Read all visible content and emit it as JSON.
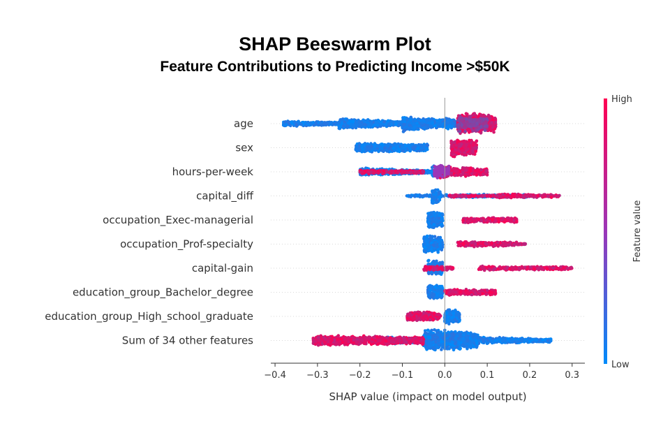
{
  "chart_data": {
    "type": "scatter",
    "subtype": "shap-beeswarm",
    "title": "SHAP Beeswarm Plot",
    "subtitle": "Feature Contributions to Predicting Income >$50K",
    "xlabel": "SHAP value (impact on model output)",
    "xlim": [
      -0.41,
      0.33
    ],
    "xticks": [
      -0.4,
      -0.3,
      -0.2,
      -0.1,
      0.0,
      0.1,
      0.2,
      0.3
    ],
    "xtick_labels": [
      "−0.4",
      "−0.3",
      "−0.2",
      "−0.1",
      "0.0",
      "0.1",
      "0.2",
      "0.3"
    ],
    "colorbar": {
      "label": "Feature value",
      "high": "High",
      "low": "Low",
      "low_color": "#008bfb",
      "high_color": "#ff0052"
    },
    "features": [
      {
        "name": "age",
        "min": -0.38,
        "max": 0.12,
        "low": [
          [
            -0.38,
            -0.25,
            0.8,
            0.3
          ],
          [
            -0.25,
            -0.1,
            1.4,
            0.5
          ],
          [
            -0.1,
            0.0,
            2.0,
            0.9
          ],
          [
            0.0,
            0.03,
            2.0,
            0.6
          ]
        ],
        "high": [
          [
            0.03,
            0.12,
            2.6,
            2.3
          ]
        ]
      },
      {
        "name": "sex",
        "min": -0.21,
        "max": 0.09,
        "low": [
          [
            -0.21,
            -0.04,
            1.2,
            1.0
          ]
        ],
        "high": [
          [
            0.015,
            0.075,
            2.2,
            1.9
          ]
        ]
      },
      {
        "name": "hours-per-week",
        "min": -0.2,
        "max": 0.1,
        "low": [
          [
            -0.2,
            -0.02,
            1.0,
            0.3
          ],
          [
            -0.03,
            0.0,
            1.7,
            1.1
          ]
        ],
        "high": [
          [
            -0.2,
            -0.05,
            0.5,
            0.4
          ],
          [
            -0.02,
            0.01,
            1.6,
            1.5
          ],
          [
            0.01,
            0.1,
            1.2,
            0.9
          ]
        ]
      },
      {
        "name": "capital_diff",
        "min": -0.09,
        "max": 0.27,
        "low": [
          [
            -0.09,
            0.0,
            0.3,
            0.3
          ],
          [
            -0.03,
            -0.01,
            1.9,
            1.6
          ],
          [
            0.0,
            0.2,
            0.4,
            0.4
          ]
        ],
        "high": [
          [
            0.01,
            0.12,
            0.35,
            0.2
          ],
          [
            0.12,
            0.27,
            0.55,
            0.35
          ]
        ]
      },
      {
        "name": "occupation_Exec-managerial",
        "min": -0.04,
        "max": 0.17,
        "low": [
          [
            -0.04,
            -0.005,
            2.2,
            2.0
          ]
        ],
        "high": [
          [
            0.04,
            0.17,
            0.7,
            0.6
          ]
        ]
      },
      {
        "name": "occupation_Prof-specialty",
        "min": -0.05,
        "max": 0.19,
        "low": [
          [
            -0.05,
            -0.005,
            2.2,
            2.0
          ]
        ],
        "high": [
          [
            0.03,
            0.17,
            0.7,
            0.5
          ],
          [
            0.17,
            0.19,
            0.3,
            0.1
          ]
        ]
      },
      {
        "name": "capital-gain",
        "min": -0.05,
        "max": 0.3,
        "low": [
          [
            -0.04,
            -0.005,
            2.0,
            1.6
          ]
        ],
        "high": [
          [
            -0.05,
            0.02,
            0.6,
            0.5
          ],
          [
            0.08,
            0.3,
            0.55,
            0.4
          ]
        ]
      },
      {
        "name": "education_group_Bachelor_degree",
        "min": -0.04,
        "max": 0.12,
        "low": [
          [
            -0.04,
            -0.005,
            2.0,
            1.8
          ]
        ],
        "high": [
          [
            0.0,
            0.12,
            0.8,
            0.7
          ]
        ]
      },
      {
        "name": "education_group_High_school_graduate",
        "min": -0.09,
        "max": 0.035,
        "low": [
          [
            0.0,
            0.035,
            2.0,
            1.7
          ]
        ],
        "high": [
          [
            -0.09,
            -0.01,
            1.2,
            1.1
          ]
        ]
      },
      {
        "name": "Sum of 34 other features",
        "min": -0.31,
        "max": 0.25,
        "low": [
          [
            -0.15,
            -0.05,
            1.0,
            0.5
          ],
          [
            -0.05,
            0.08,
            2.8,
            2.0
          ],
          [
            0.08,
            0.25,
            0.9,
            0.4
          ]
        ],
        "high": [
          [
            -0.31,
            -0.05,
            1.2,
            1.0
          ]
        ]
      }
    ]
  }
}
